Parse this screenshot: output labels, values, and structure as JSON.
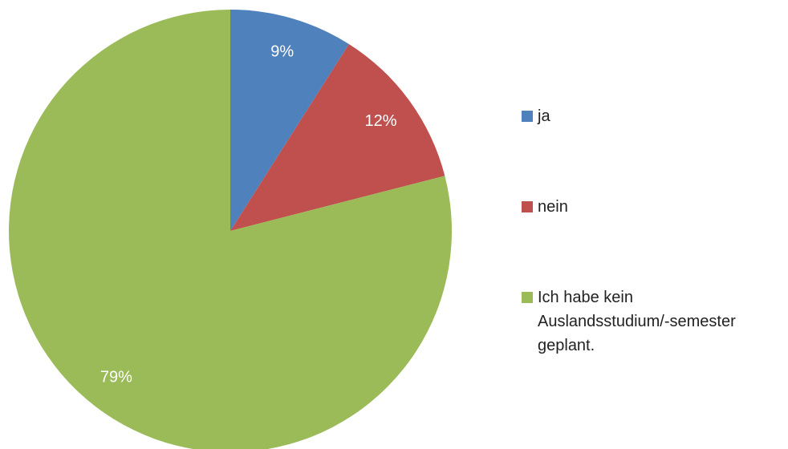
{
  "chart_data": {
    "type": "pie",
    "categories": [
      "ja",
      "nein",
      "Ich habe kein Auslandsstudium/-semester geplant."
    ],
    "values": [
      9,
      12,
      79
    ],
    "value_labels": [
      "9%",
      "12%",
      "79%"
    ],
    "colors": [
      "#4f81bd",
      "#c0504d",
      "#9bbb59"
    ],
    "legend": "right"
  }
}
